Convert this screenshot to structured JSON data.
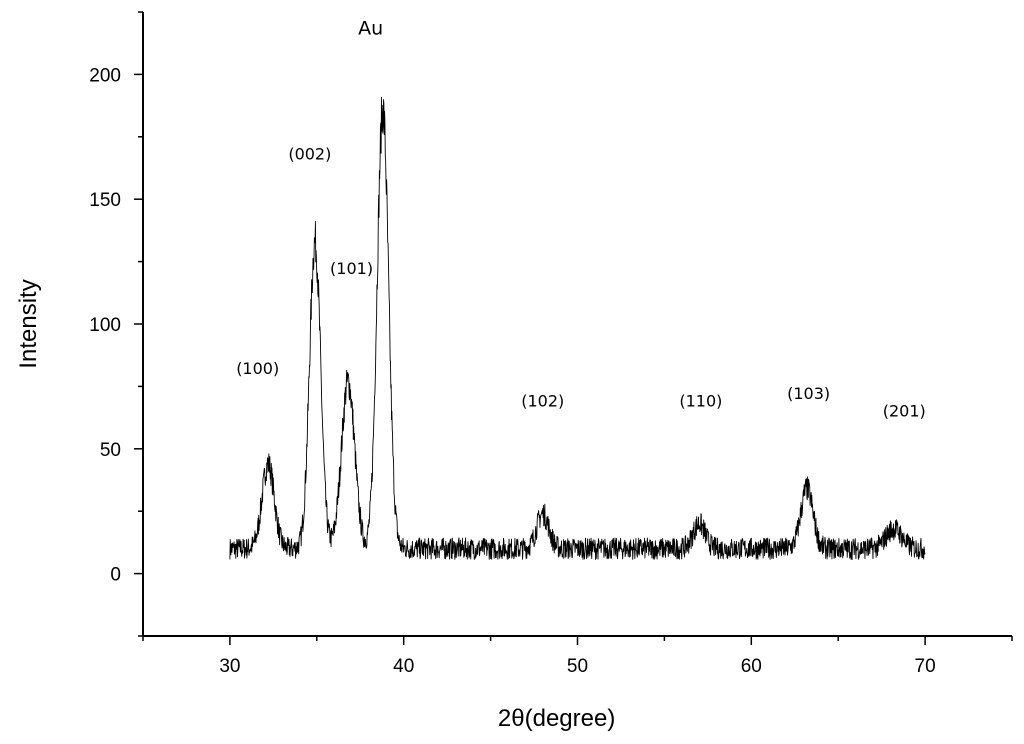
{
  "chart_data": {
    "type": "line",
    "xlabel": "2θ(degree)",
    "ylabel": "Intensity",
    "xlim": [
      25,
      75
    ],
    "ylim": [
      -25,
      225
    ],
    "xticks": [
      30,
      40,
      50,
      60,
      70
    ],
    "yticks": [
      0,
      50,
      100,
      150,
      200
    ],
    "grid": false,
    "legend": "none",
    "line_color": "#000000",
    "series": [
      {
        "x_range": [
          30,
          70
        ],
        "baseline": 10,
        "noise": 4,
        "peaks": [
          {
            "x": 32.2,
            "y": 44,
            "width": 0.35
          },
          {
            "x": 34.9,
            "y": 133,
            "width": 0.32
          },
          {
            "x": 36.8,
            "y": 77,
            "width": 0.38
          },
          {
            "x": 38.8,
            "y": 186,
            "width": 0.33
          },
          {
            "x": 48.0,
            "y": 24,
            "width": 0.35
          },
          {
            "x": 57.0,
            "y": 20,
            "width": 0.35
          },
          {
            "x": 63.2,
            "y": 34,
            "width": 0.35
          },
          {
            "x": 68.2,
            "y": 18,
            "width": 0.45
          }
        ]
      }
    ],
    "annotations": [
      {
        "text": "Au",
        "x": 38.1,
        "y": 216
      },
      {
        "text": "(002)",
        "x": 34.6,
        "y": 166
      },
      {
        "text": "(101)",
        "x": 37.0,
        "y": 120
      },
      {
        "text": "(100)",
        "x": 31.6,
        "y": 80
      },
      {
        "text": "(102)",
        "x": 48.0,
        "y": 67
      },
      {
        "text": "(110)",
        "x": 57.1,
        "y": 67
      },
      {
        "text": "(103)",
        "x": 63.3,
        "y": 70
      },
      {
        "text": "(201)",
        "x": 68.8,
        "y": 63
      }
    ]
  }
}
